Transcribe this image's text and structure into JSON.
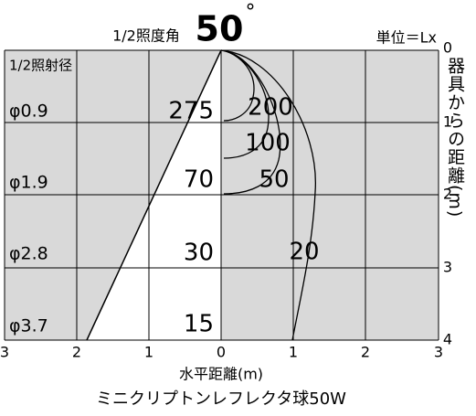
{
  "header": {
    "angle_label": "1/2照度角",
    "angle_value": "50",
    "degree": "°",
    "unit": "単位＝Lx"
  },
  "left_label": "1/2照射径",
  "diameters": [
    "φ0.9",
    "φ1.9",
    "φ2.8",
    "φ3.7"
  ],
  "center_values": [
    "275",
    "70",
    "30",
    "15"
  ],
  "contours": [
    "200",
    "100",
    "50",
    "20"
  ],
  "x_ticks": [
    "3",
    "2",
    "1",
    "0",
    "1",
    "2",
    "3"
  ],
  "y_ticks": [
    "0",
    "1",
    "2",
    "3",
    "4"
  ],
  "y_axis_label": "器具からの距離(m)",
  "x_axis_label": "水平距離(m)",
  "caption": "ミニクリプトンレフレクタ球50W"
}
